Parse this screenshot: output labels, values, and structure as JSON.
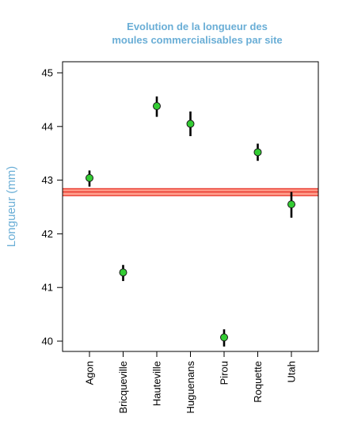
{
  "chart_data": {
    "type": "scatter",
    "title_line1": "Evolution de la longueur des",
    "title_line2": "moules commercialisables par site",
    "ylabel": "Longueur (mm)",
    "xlabel": "",
    "categories": [
      "Agon",
      "Bricqueville",
      "Hauteville",
      "Huguenans",
      "Pirou",
      "Roquette",
      "Utah"
    ],
    "values": [
      43.04,
      41.28,
      44.38,
      44.05,
      40.07,
      43.52,
      42.55
    ],
    "err_low": [
      42.88,
      41.12,
      44.18,
      43.82,
      39.9,
      43.36,
      42.3
    ],
    "err_high": [
      43.18,
      41.42,
      44.56,
      44.28,
      40.22,
      43.68,
      42.78
    ],
    "ylim": [
      39.8,
      45.2
    ],
    "yticks": [
      40,
      41,
      42,
      43,
      44,
      45
    ],
    "reference_band": {
      "center": 42.78,
      "low": 42.71,
      "high": 42.84
    },
    "grid": false,
    "colors": {
      "point_fill": "#33cc33",
      "point_stroke": "#1a1a1a",
      "error_bar": "#000000",
      "band_fill": "#ff9c8a",
      "band_edge": "#e8352a",
      "title": "#6aaed6",
      "ylabel": "#6aaed6"
    }
  }
}
